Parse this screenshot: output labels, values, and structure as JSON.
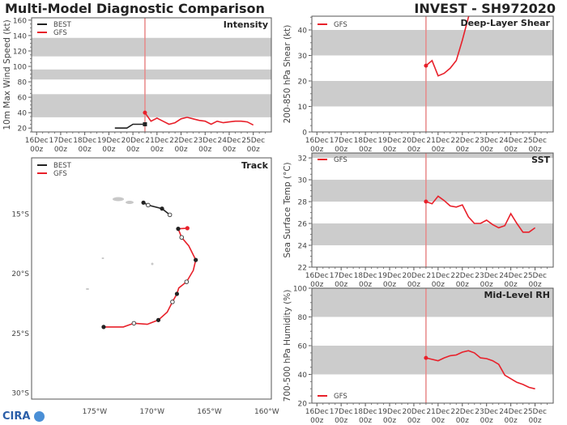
{
  "header": {
    "title": "Multi-Model Diagnostic Comparison",
    "storm": "INVEST - SH972020"
  },
  "logo_text": "CIRA",
  "colors": {
    "best": "#222222",
    "gfs": "#e8202a",
    "band": "#cccccc",
    "init_line": "#e88888"
  },
  "x_ticks": [
    "16Dec",
    "17Dec",
    "18Dec",
    "19Dec",
    "20Dec",
    "21Dec",
    "22Dec",
    "23Dec",
    "24Dec",
    "25Dec"
  ],
  "x_tick_sub": "00z",
  "init_time": "20Dec 12z",
  "xlim": [
    "15Dec 19z",
    "25Dec 18z"
  ],
  "chart_data": [
    {
      "type": "line",
      "title": "Intensity",
      "ylabel": "10m Max Wind Speed (kt)",
      "ylim": [
        15,
        163
      ],
      "yticks": [
        20,
        40,
        60,
        80,
        100,
        120,
        140,
        160
      ],
      "bands": [
        [
          34,
          64
        ],
        [
          83,
          96
        ],
        [
          113,
          137
        ]
      ],
      "legend": "top-left",
      "series": [
        {
          "name": "BEST",
          "color": "best",
          "x": [
            "19Dec 06z",
            "19Dec 18z",
            "20Dec 00z",
            "20Dec 12z"
          ],
          "y": [
            20,
            20,
            25,
            25
          ]
        },
        {
          "name": "GFS",
          "color": "gfs",
          "x": [
            "20Dec 12z",
            "20Dec 18z",
            "21Dec 00z",
            "21Dec 06z",
            "21Dec 12z",
            "21Dec 18z",
            "22Dec 00z",
            "22Dec 06z",
            "22Dec 12z",
            "22Dec 18z",
            "23Dec 00z",
            "23Dec 06z",
            "23Dec 12z",
            "23Dec 18z",
            "24Dec 00z",
            "24Dec 06z",
            "24Dec 12z",
            "24Dec 18z",
            "25Dec 00z"
          ],
          "y": [
            40,
            29,
            33,
            29,
            25,
            27,
            32,
            34,
            32,
            30,
            29,
            25,
            29,
            27,
            28,
            29,
            29,
            28,
            24
          ]
        }
      ]
    },
    {
      "type": "line",
      "title": "Deep-Layer Shear",
      "ylabel": "200-850 hPa Shear (kt)",
      "ylim": [
        0,
        45.4
      ],
      "yticks": [
        0,
        10,
        20,
        30,
        40
      ],
      "bands": [
        [
          10,
          20
        ],
        [
          30,
          40
        ]
      ],
      "legend": "top-left",
      "series": [
        {
          "name": "GFS",
          "color": "gfs",
          "x": [
            "20Dec 12z",
            "20Dec 18z",
            "21Dec 00z",
            "21Dec 06z",
            "21Dec 12z",
            "21Dec 18z",
            "22Dec 00z",
            "22Dec 06z",
            "22Dec 12z"
          ],
          "y": [
            26,
            28,
            22,
            23,
            25,
            28,
            36,
            45,
            52
          ]
        }
      ]
    },
    {
      "type": "line",
      "title": "SST",
      "ylabel": "Sea Surface Temp (°C)",
      "ylim": [
        22,
        32.45
      ],
      "yticks": [
        22,
        24,
        26,
        28,
        30,
        32
      ],
      "bands": [
        [
          24,
          26
        ],
        [
          28,
          30
        ],
        [
          32,
          32.45
        ]
      ],
      "legend": "top-left",
      "series": [
        {
          "name": "GFS",
          "color": "gfs",
          "x": [
            "20Dec 12z",
            "20Dec 18z",
            "21Dec 00z",
            "21Dec 06z",
            "21Dec 12z",
            "21Dec 18z",
            "22Dec 00z",
            "22Dec 06z",
            "22Dec 12z",
            "22Dec 18z",
            "23Dec 00z",
            "23Dec 06z",
            "23Dec 12z",
            "23Dec 18z",
            "24Dec 00z",
            "24Dec 06z",
            "24Dec 12z",
            "24Dec 18z",
            "25Dec 00z"
          ],
          "y": [
            28,
            27.8,
            28.5,
            28.1,
            27.6,
            27.5,
            27.7,
            26.6,
            26,
            26,
            26.3,
            25.9,
            25.6,
            25.8,
            26.9,
            26,
            25.2,
            25.2,
            25.6
          ]
        }
      ]
    },
    {
      "type": "line",
      "title": "Mid-Level RH",
      "ylabel": "700-500 hPa Humidity (%)",
      "ylim": [
        20,
        100
      ],
      "yticks": [
        20,
        40,
        60,
        80,
        100
      ],
      "bands": [
        [
          40,
          60
        ],
        [
          80,
          100
        ]
      ],
      "legend": "bottom-left",
      "series": [
        {
          "name": "GFS",
          "color": "gfs",
          "x": [
            "20Dec 12z",
            "20Dec 18z",
            "21Dec 00z",
            "21Dec 06z",
            "21Dec 12z",
            "21Dec 18z",
            "22Dec 00z",
            "22Dec 06z",
            "22Dec 12z",
            "22Dec 18z",
            "23Dec 00z",
            "23Dec 06z",
            "23Dec 12z",
            "23Dec 18z",
            "24Dec 00z",
            "24Dec 06z",
            "24Dec 12z",
            "24Dec 18z",
            "25Dec 00z"
          ],
          "y": [
            51.5,
            50.5,
            49.5,
            51.5,
            53,
            53.5,
            55.5,
            56.5,
            55,
            51.5,
            51,
            49.5,
            47,
            39.5,
            37,
            34.5,
            33,
            31,
            30
          ]
        }
      ]
    },
    {
      "type": "scatter",
      "title": "Track",
      "legend": "top-left",
      "xlim": [
        -180.5,
        -159.6
      ],
      "ylim": [
        -30.5,
        -10.3
      ],
      "xticks": [
        -175,
        -170,
        -165,
        -160
      ],
      "xtick_labels": [
        "175°W",
        "170°W",
        "165°W",
        "160°W"
      ],
      "yticks": [
        -15,
        -20,
        -25,
        -30
      ],
      "ytick_labels": [
        "15°S",
        "20°S",
        "25°S",
        "30°S"
      ],
      "series": [
        {
          "name": "BEST",
          "color": "best",
          "lon": [
            -170.75,
            -170.34,
            -169.13,
            -168.45
          ],
          "lat": [
            -14.05,
            -14.26,
            -14.55,
            -15.07
          ],
          "markers": [
            "filled",
            "open",
            "filled",
            "open"
          ]
        },
        {
          "name": "GFS",
          "color": "gfs",
          "lon": [
            -166.92,
            -167.72,
            -167.42,
            -166.8,
            -166.19,
            -166.41,
            -166.99,
            -167.67,
            -167.83,
            -168.22,
            -168.68,
            -169.45,
            -170.41,
            -171.58,
            -172.51,
            -174.22
          ],
          "lat": [
            -16.19,
            -16.24,
            -16.96,
            -17.66,
            -18.85,
            -19.73,
            -20.68,
            -21.19,
            -21.69,
            -22.36,
            -23.22,
            -23.88,
            -24.24,
            -24.15,
            -24.46,
            -24.46
          ],
          "markers": [
            "start",
            "filled",
            "open",
            "none",
            "filled",
            "none",
            "open",
            "none",
            "filled",
            "open",
            "none",
            "filled",
            "none",
            "open",
            "none",
            "filled"
          ]
        }
      ]
    }
  ]
}
